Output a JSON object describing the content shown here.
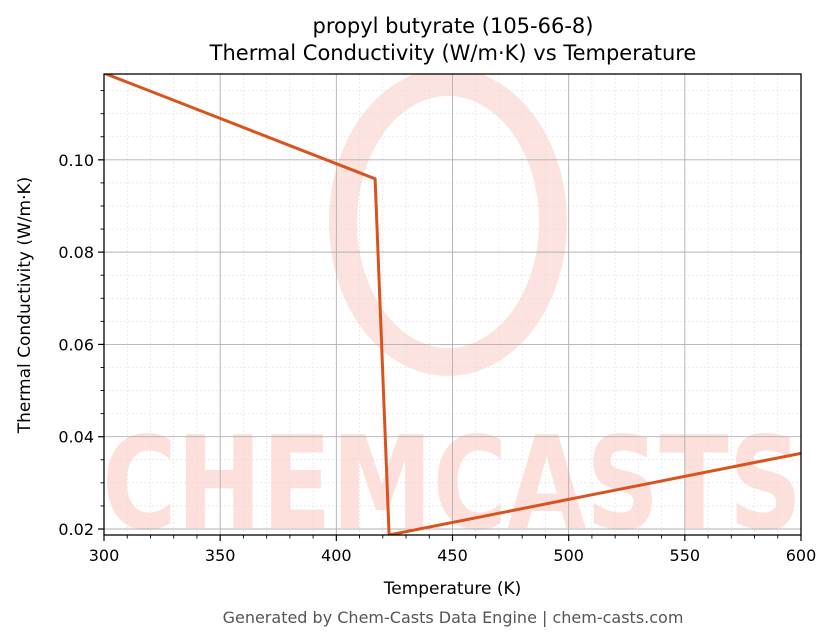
{
  "header": {
    "title_line1": "propyl butyrate (105-66-8)",
    "title_line2": "Thermal Conductivity (W/m·K) vs Temperature"
  },
  "footer": {
    "text": "Generated by Chem-Casts Data Engine | chem-casts.com"
  },
  "watermark": {
    "text": "CHEMCASTS",
    "color": "#fde0db"
  },
  "colors": {
    "line": "#d9531e",
    "major_grid": "#b0b0b0",
    "minor_grid": "#dddddd",
    "axis": "#000000"
  },
  "chart_data": {
    "type": "line",
    "title": "propyl butyrate (105-66-8)\nThermal Conductivity (W/m·K) vs Temperature",
    "xlabel": "Temperature (K)",
    "ylabel": "Thermal Conductivity (W/m·K)",
    "xlim": [
      300,
      600
    ],
    "ylim": [
      0.0187,
      0.1186
    ],
    "xticks": [
      300,
      350,
      400,
      450,
      500,
      550,
      600
    ],
    "xtick_labels": [
      "300",
      "350",
      "400",
      "450",
      "500",
      "550",
      "600"
    ],
    "yticks": [
      0.02,
      0.04,
      0.06,
      0.08,
      0.1
    ],
    "ytick_labels": [
      "0.02",
      "0.04",
      "0.06",
      "0.08",
      "0.10"
    ],
    "grid": true,
    "minor_grid": true,
    "legend": null,
    "series": [
      {
        "name": "Thermal Conductivity",
        "x": [
          300,
          416.7,
          422.7,
          600
        ],
        "y": [
          0.1188,
          0.0959,
          0.0187,
          0.0364
        ]
      }
    ]
  }
}
